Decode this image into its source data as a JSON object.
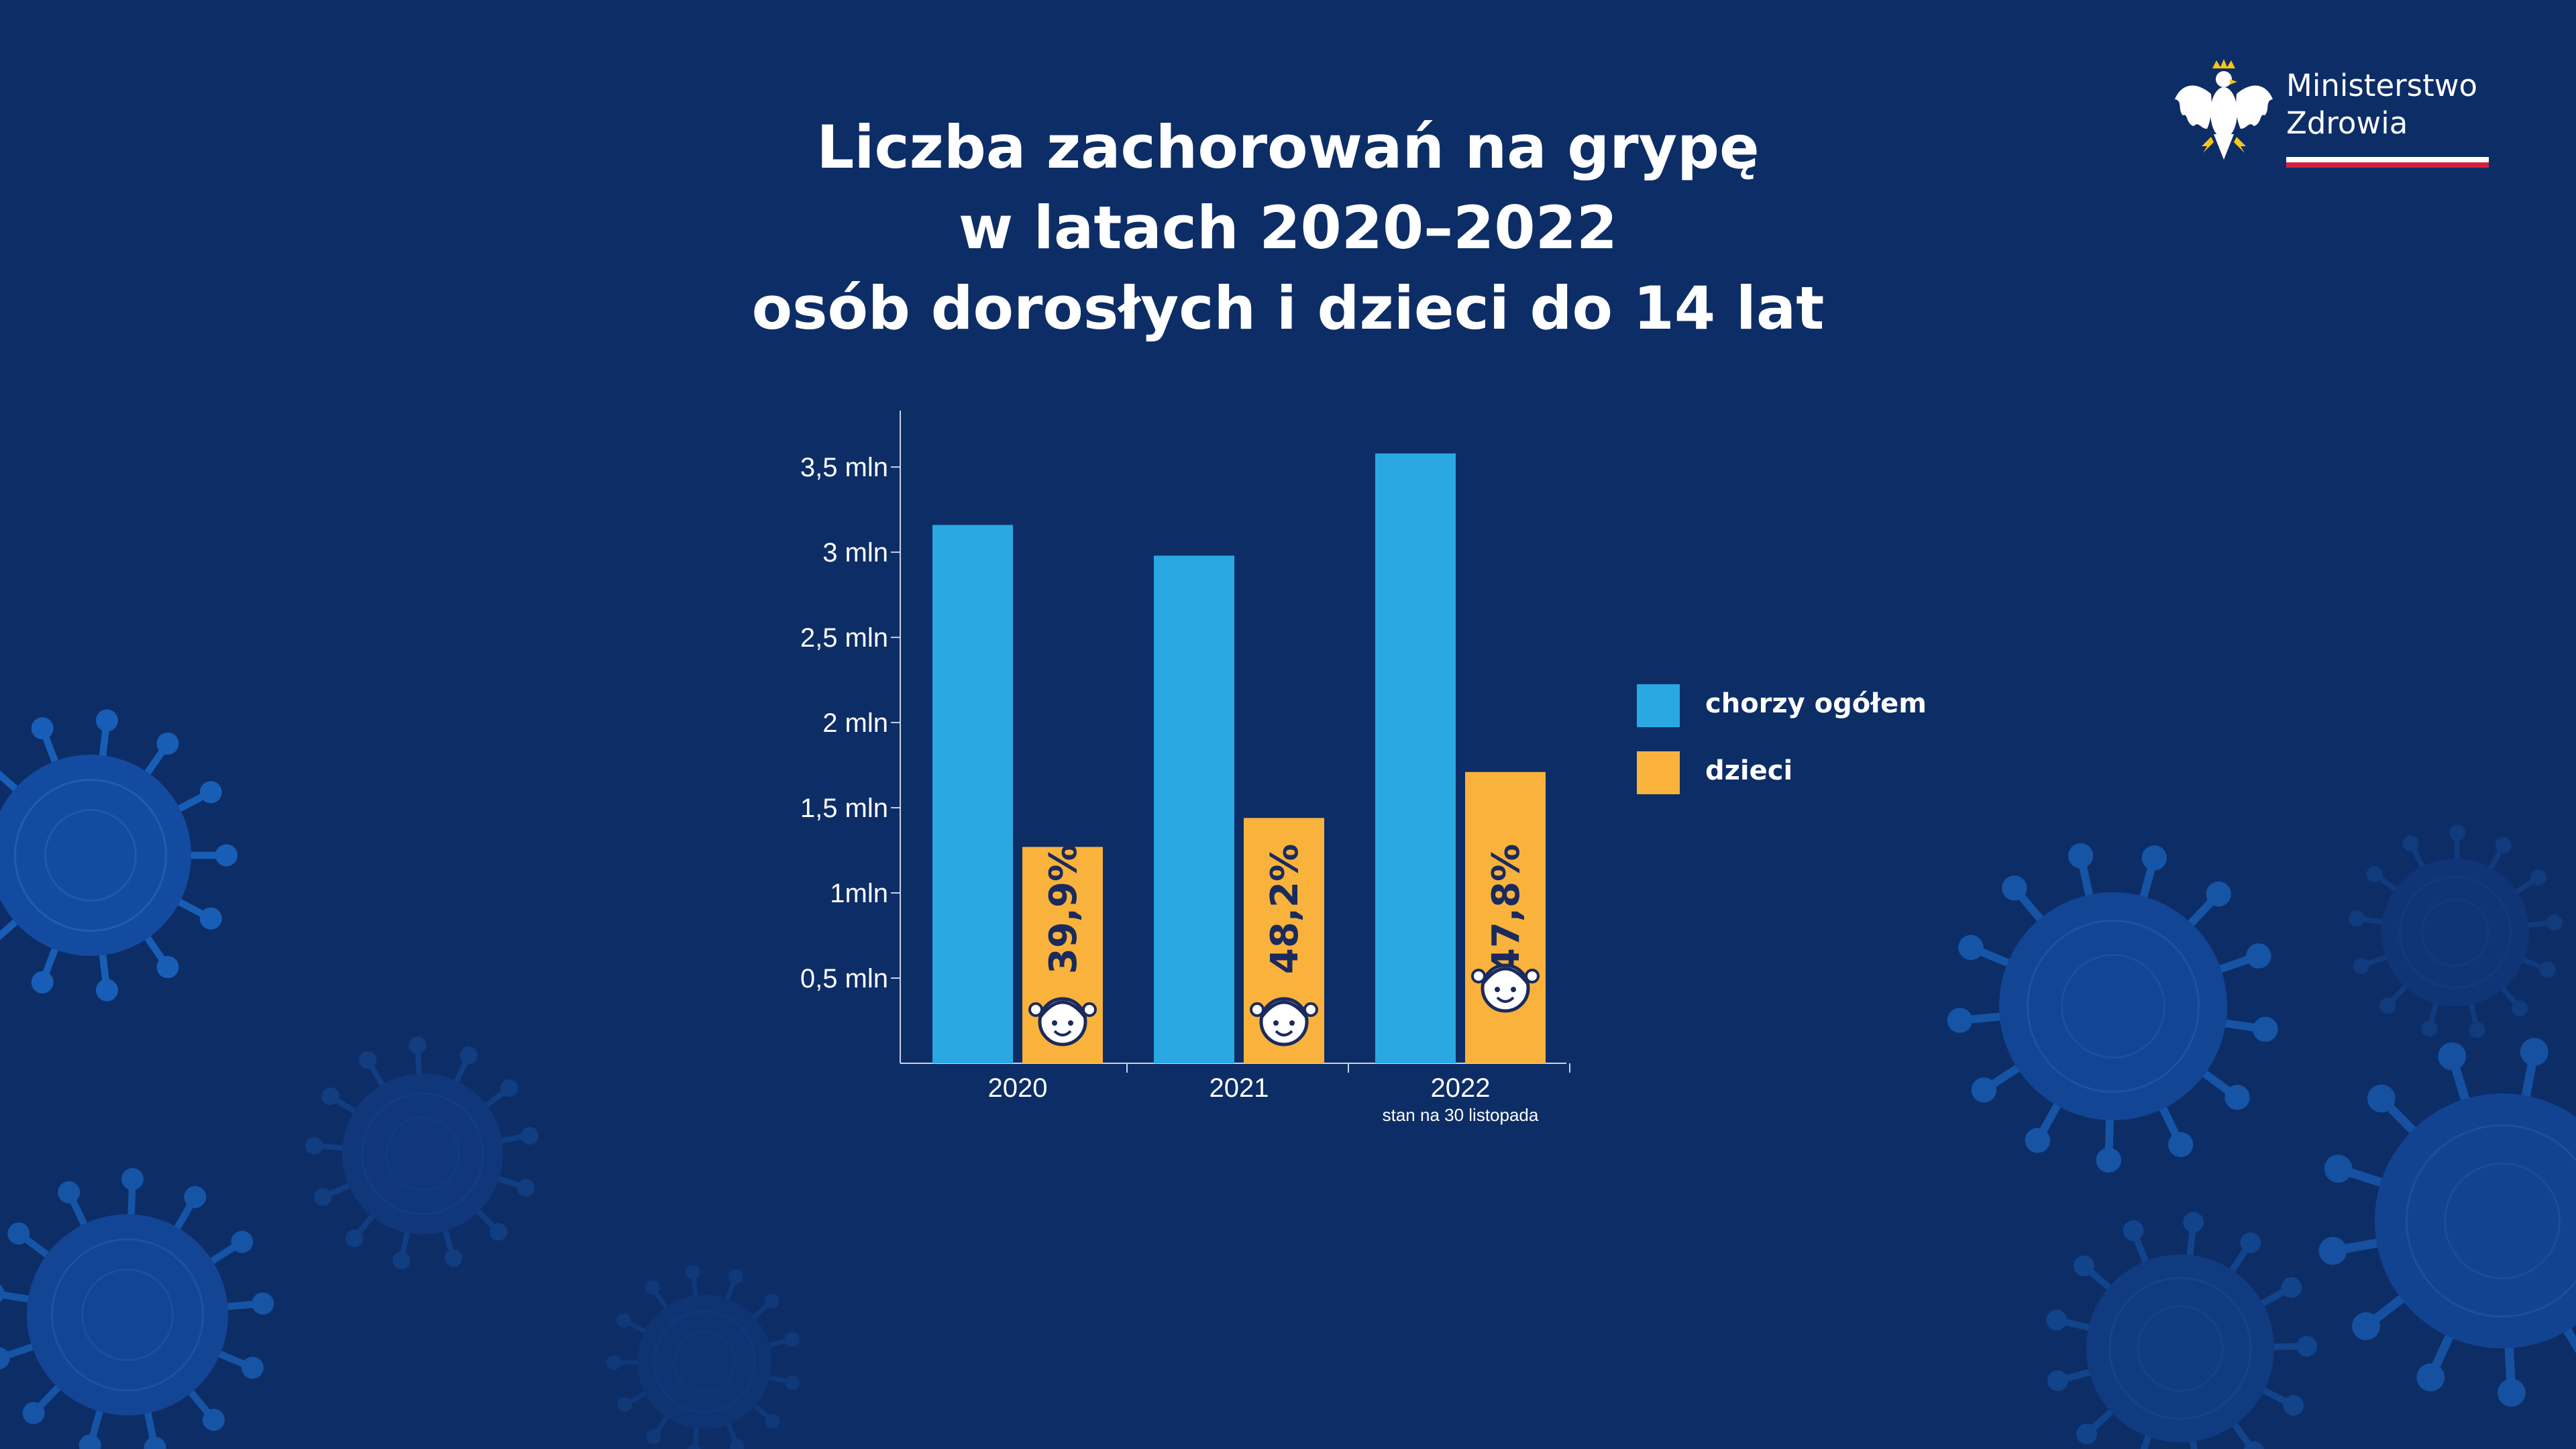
{
  "title_lines": [
    "Liczba zachorowań na grypę",
    "w latach 2020–2022",
    "osób dorosłych i dzieci do 14 lat"
  ],
  "logo": {
    "line1": "Ministerstwo",
    "line2": "Zdrowia",
    "icon": "eagle-emblem-icon"
  },
  "colors": {
    "background": "#0d2d66",
    "total": "#29a8e2",
    "children": "#f9b23c",
    "percent_text": "#1b2a5c"
  },
  "chart_data": {
    "type": "bar",
    "categories": [
      "2020",
      "2021",
      "2022"
    ],
    "category_notes": [
      "",
      "",
      "stan na 30 listopada"
    ],
    "series": [
      {
        "name": "chorzy ogółem",
        "values": [
          3.16,
          2.98,
          3.58
        ]
      },
      {
        "name": "dzieci",
        "values": [
          1.27,
          1.44,
          1.71
        ]
      }
    ],
    "bar_labels": [
      "39,9%",
      "48,2%",
      "47,8%"
    ],
    "yticks": [
      {
        "value": 0.5,
        "label": "0,5 mln"
      },
      {
        "value": 1,
        "label": "1mln"
      },
      {
        "value": 1.5,
        "label": "1,5 mln"
      },
      {
        "value": 2,
        "label": "2 mln"
      },
      {
        "value": 2.5,
        "label": "2,5 mln"
      },
      {
        "value": 3,
        "label": "3 mln"
      },
      {
        "value": 3.5,
        "label": "3,5 mln"
      }
    ],
    "ylim": [
      0,
      3.8
    ],
    "legend_position": "right",
    "grid": false
  }
}
